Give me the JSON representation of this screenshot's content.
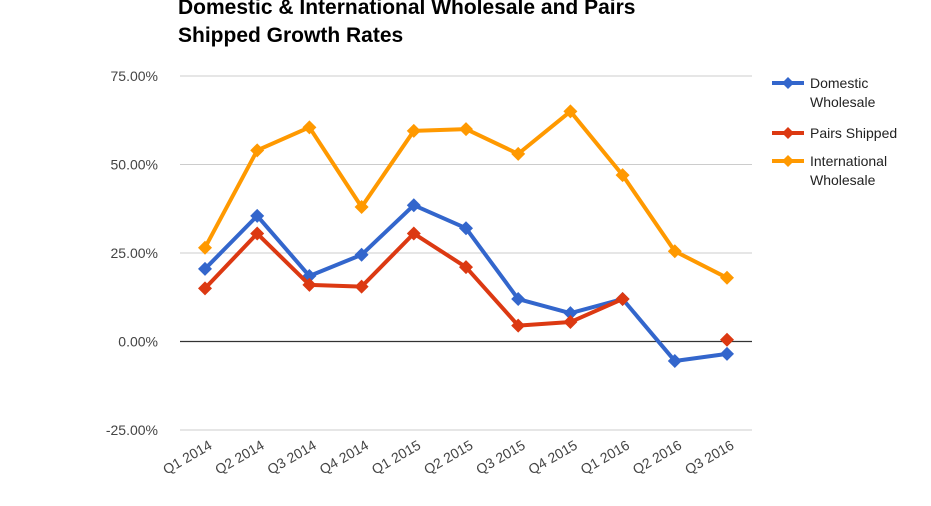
{
  "chart_data": {
    "type": "line",
    "title_lines": [
      "Domestic & International Wholesale and Pairs",
      "Shipped Growth Rates"
    ],
    "categories": [
      "Q1 2014",
      "Q2 2014",
      "Q3 2014",
      "Q4 2014",
      "Q1 2015",
      "Q2 2015",
      "Q3 2015",
      "Q4 2015",
      "Q1 2016",
      "Q2 2016",
      "Q3 2016"
    ],
    "y_ticks": [
      "75.00%",
      "50.00%",
      "25.00%",
      "0.00%",
      "-25.00%"
    ],
    "y_tick_values": [
      75,
      50,
      25,
      0,
      -25
    ],
    "ylim": [
      -25,
      75
    ],
    "grid": true,
    "legend_position": "right",
    "series": [
      {
        "name_lines": [
          "Domestic",
          "Wholesale"
        ],
        "color": "#3366cc",
        "values": [
          20.5,
          35.5,
          18.5,
          24.5,
          38.5,
          32,
          12,
          8,
          12,
          -5.5,
          -3.5
        ]
      },
      {
        "name_lines": [
          "Pairs Shipped"
        ],
        "color": "#dc3912",
        "values": [
          15,
          30.5,
          16,
          15.5,
          30.5,
          21,
          4.5,
          5.5,
          12,
          null,
          0.5
        ]
      },
      {
        "name_lines": [
          "International",
          "Wholesale"
        ],
        "color": "#ff9900",
        "values": [
          26.5,
          54,
          60.5,
          38,
          59.5,
          60,
          53,
          65,
          47,
          25.5,
          18
        ]
      }
    ]
  }
}
